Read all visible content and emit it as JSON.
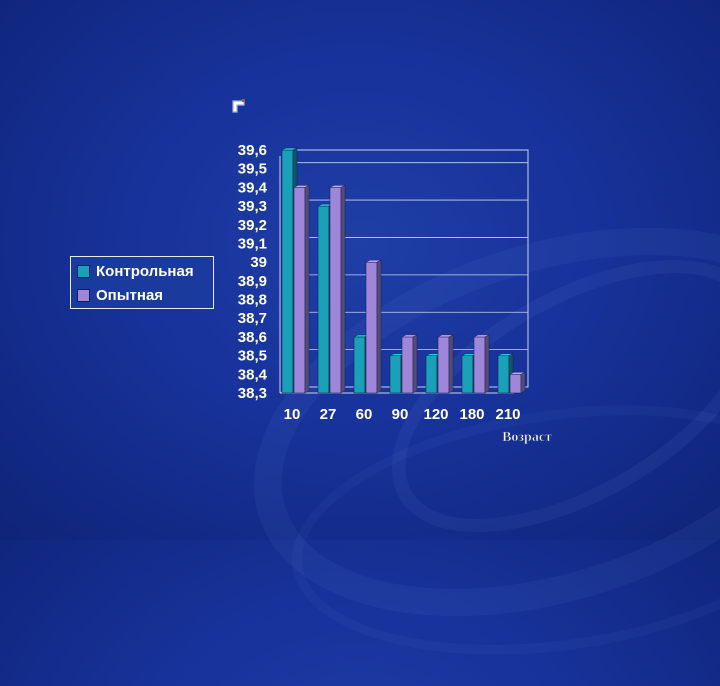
{
  "slide": {
    "label": "г",
    "xaxis_name": "Возраст"
  },
  "chart_data": {
    "type": "bar",
    "categories": [
      "10",
      "27",
      "60",
      "90",
      "120",
      "180",
      "210"
    ],
    "series": [
      {
        "name": "Контрольная",
        "color": "#1aa0b8",
        "values": [
          39.6,
          39.3,
          38.6,
          38.5,
          38.5,
          38.5,
          38.5
        ]
      },
      {
        "name": "Опытная",
        "color": "#9f86d8",
        "values": [
          39.4,
          39.4,
          39.0,
          38.6,
          38.6,
          38.6,
          38.4
        ]
      }
    ],
    "ylim": [
      38.3,
      39.6
    ],
    "yticks": [
      "39,6",
      "39,5",
      "39,4",
      "39,3",
      "39,2",
      "39,1",
      "39",
      "38,9",
      "38,8",
      "38,7",
      "38,6",
      "38,5",
      "38,4",
      "38,3"
    ],
    "grid": true,
    "legend_position": "left",
    "xlabel": "Возраст",
    "ylabel": ""
  }
}
